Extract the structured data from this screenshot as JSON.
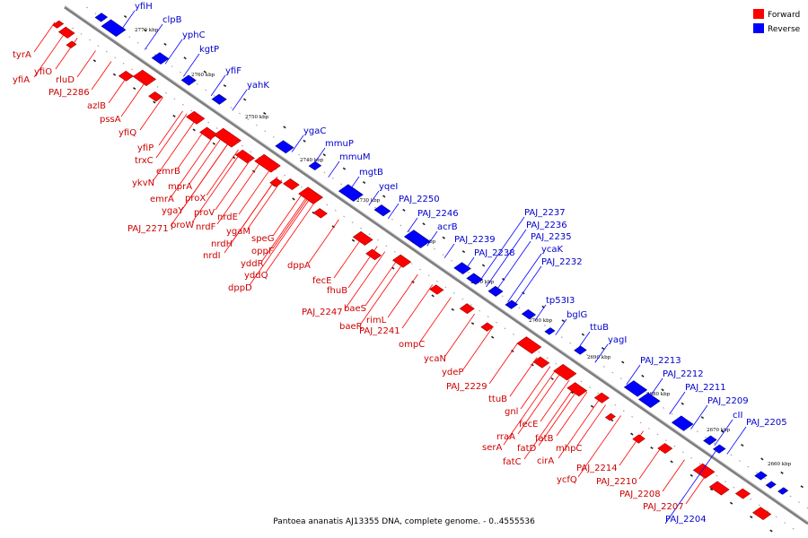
{
  "caption": "Pantoea ananatis AJ13355 DNA, complete genome. - 0..4555536",
  "legend": [
    {
      "label": "Forward",
      "color": "#ff0000"
    },
    {
      "label": "Reverse",
      "color": "#0000ff"
    }
  ],
  "colors": {
    "forward": "#ff0000",
    "forward_label": "#cc0000",
    "reverse": "#0000ff",
    "reverse_label": "#0000cc",
    "axis": "#888888"
  },
  "ticks": [
    "2770 kbp",
    "2760 kbp",
    "2750 kbp",
    "2740 kbp",
    "2730 kbp",
    "2720 kbp",
    "2710 kbp",
    "2700 kbp",
    "2690 kbp",
    "2680 kbp",
    "2670 kbp",
    "2660 kbp"
  ],
  "forward_genes": [
    "tyrA",
    "yfiO",
    "yfiA",
    "rluD",
    "PAJ_2286",
    "azlB",
    "pssA",
    "yfiQ",
    "yfiP",
    "trxC",
    "emrB",
    "ykvN",
    "mprA",
    "emrA",
    "proX",
    "ygaY",
    "proW",
    "PAJ_2271",
    "proV",
    "nrdE",
    "nrdF",
    "ygaM",
    "nrdH",
    "nrdI",
    "speG",
    "oppF",
    "yddR",
    "dppA",
    "yddQ",
    "dppD",
    "fecE",
    "fhuB",
    "baeS",
    "PAJ_2247",
    "rimL",
    "baeR",
    "PAJ_2241",
    "ompC",
    "ycaN",
    "ydeP",
    "PAJ_2229",
    "ttuB",
    "gnl",
    "fecE",
    "rraA",
    "fatB",
    "serA",
    "fatD",
    "mhpC",
    "fatC",
    "cirA",
    "PAJ_2214",
    "ycfQ",
    "PAJ_2210",
    "PAJ_2208",
    "PAJ_2207"
  ],
  "reverse_genes": [
    "yfiH",
    "clpB",
    "yphC",
    "kgtP",
    "yfiF",
    "yahK",
    "ygaC",
    "mmuP",
    "mmuM",
    "mgtB",
    "yqeI",
    "PAJ_2250",
    "PAJ_2246",
    "acrB",
    "PAJ_2239",
    "PAJ_2238",
    "PAJ_2237",
    "PAJ_2236",
    "PAJ_2235",
    "ycaK",
    "PAJ_2232",
    "tp53I3",
    "bglG",
    "ttuB",
    "yagI",
    "PAJ_2213",
    "PAJ_2212",
    "PAJ_2211",
    "PAJ_2209",
    "cII",
    "PAJ_2205",
    "PAJ_2204"
  ]
}
